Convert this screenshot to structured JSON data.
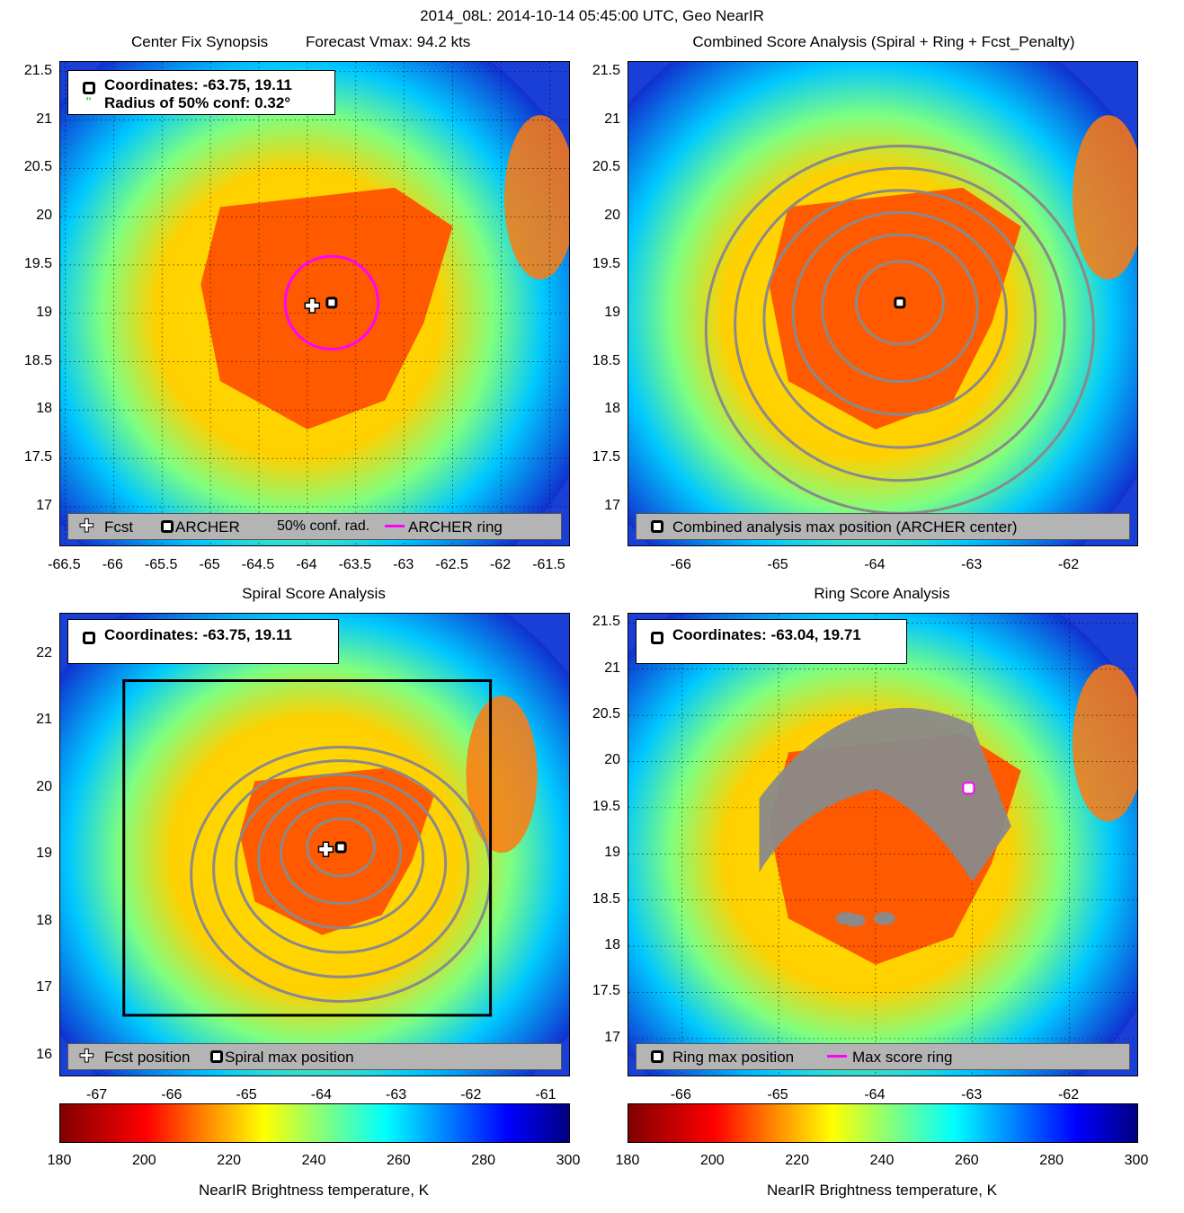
{
  "figure": {
    "title": "2014_08L: 2014-10-14 05:45:00 UTC, Geo NearIR"
  },
  "colors": {
    "core": "#ff5a00",
    "contour": "#8a8a8a",
    "ring": "#ff00ff",
    "legend_bg": "#b4b4b4"
  },
  "chart_data": [
    {
      "type": "heatmap",
      "id": "center_fix",
      "title": "Center Fix Synopsis",
      "subtitle": "Forecast Vmax: 94.2 kts",
      "xlim": [
        -66.55,
        -61.3
      ],
      "ylim": [
        16.6,
        21.6
      ],
      "xticks": [
        "-66.5",
        "-66",
        "-65.5",
        "-65",
        "-64.5",
        "-64",
        "-63.5",
        "-63",
        "-62.5",
        "-62",
        "-61.5"
      ],
      "yticks": [
        "21.5",
        "21",
        "20.5",
        "20",
        "19.5",
        "19",
        "18.5",
        "18",
        "17.5",
        "17"
      ],
      "grid": true,
      "info": {
        "coordinates_label": "Coordinates: -63.75, 19.11",
        "radius_label": "Radius of 50% conf: 0.32°"
      },
      "points": {
        "forecast": {
          "lon": -63.95,
          "lat": 19.08
        },
        "archer": {
          "lon": -63.75,
          "lat": 19.11
        }
      },
      "archer_ring": {
        "lon": -63.75,
        "lat": 19.11,
        "radius_deg": 0.48
      },
      "legend": {
        "fcst": "Fcst",
        "archer": "ARCHER",
        "conf": "50% conf. rad.",
        "ring": "ARCHER ring"
      }
    },
    {
      "type": "heatmap",
      "id": "combined",
      "title": "Combined Score Analysis (Spiral + Ring + Fcst_Penalty)",
      "xlim": [
        -66.55,
        -61.3
      ],
      "ylim": [
        16.6,
        21.6
      ],
      "xticks": [
        "-66",
        "-65",
        "-64",
        "-63",
        "-62"
      ],
      "yticks": [
        "21.5",
        "21",
        "20.5",
        "20",
        "19.5",
        "19",
        "18.5",
        "18",
        "17.5",
        "17"
      ],
      "grid": false,
      "max_position": {
        "lon": -63.75,
        "lat": 19.11
      },
      "legend": {
        "label": "Combined analysis max position (ARCHER center)"
      }
    },
    {
      "type": "heatmap",
      "id": "spiral",
      "title": "Spiral Score Analysis",
      "xlim": [
        -67.5,
        -60.7
      ],
      "ylim": [
        15.7,
        22.6
      ],
      "xticks": [
        "-67",
        "-66",
        "-65",
        "-64",
        "-63",
        "-62",
        "-61"
      ],
      "yticks": [
        "22",
        "21",
        "20",
        "19",
        "18",
        "17",
        "16"
      ],
      "grid": false,
      "info": {
        "coordinates_label": "Coordinates: -63.75, 19.11"
      },
      "points": {
        "forecast": {
          "lon": -63.95,
          "lat": 19.08
        },
        "spiral_max": {
          "lon": -63.75,
          "lat": 19.11
        }
      },
      "search_box": {
        "lon_min": -66.65,
        "lon_max": -61.75,
        "lat_min": 16.6,
        "lat_max": 21.6
      },
      "legend": {
        "fcst": "Fcst position",
        "max": "Spiral max position"
      }
    },
    {
      "type": "heatmap",
      "id": "ring",
      "title": "Ring Score Analysis",
      "xlim": [
        -66.55,
        -61.3
      ],
      "ylim": [
        16.6,
        21.6
      ],
      "xticks": [
        "-66",
        "-65",
        "-64",
        "-63",
        "-62"
      ],
      "yticks": [
        "21.5",
        "21",
        "20.5",
        "20",
        "19.5",
        "19",
        "18.5",
        "18",
        "17.5",
        "17"
      ],
      "grid": true,
      "info": {
        "coordinates_label": "Coordinates: -63.04, 19.71"
      },
      "max_position": {
        "lon": -63.04,
        "lat": 19.71
      },
      "legend": {
        "max": "Ring max position",
        "ring": "Max score ring"
      }
    }
  ],
  "colorbars": [
    {
      "id": "left",
      "range": [
        180,
        300
      ],
      "ticks": [
        "180",
        "200",
        "220",
        "240",
        "260",
        "280",
        "300"
      ],
      "label": "NearIR Brightness temperature, K"
    },
    {
      "id": "right",
      "range": [
        180,
        300
      ],
      "ticks": [
        "180",
        "200",
        "220",
        "240",
        "260",
        "280",
        "300"
      ],
      "label": "NearIR Brightness temperature, K"
    }
  ]
}
